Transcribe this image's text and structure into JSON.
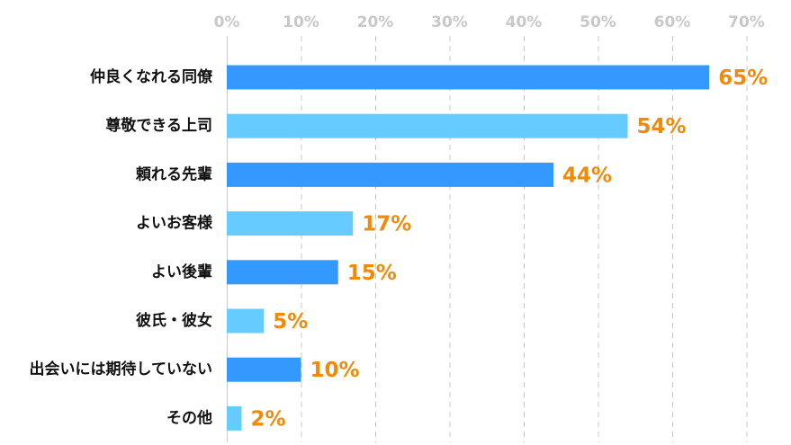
{
  "chart_data": {
    "type": "bar",
    "orientation": "horizontal",
    "categories": [
      "仲良くなれる同僚",
      "尊敬できる上司",
      "頼れる先輩",
      "よいお客様",
      "よい後輩",
      "彼氏・彼女",
      "出会いには期待していない",
      "その他"
    ],
    "values": [
      65,
      54,
      44,
      17,
      15,
      5,
      10,
      2
    ],
    "value_labels": [
      "65%",
      "54%",
      "44%",
      "17%",
      "15%",
      "5%",
      "10%",
      "2%"
    ],
    "x_ticks": [
      0,
      10,
      20,
      30,
      40,
      50,
      60,
      70
    ],
    "x_tick_labels": [
      "0%",
      "10%",
      "20%",
      "30%",
      "40%",
      "50%",
      "60%",
      "70%"
    ],
    "xlim": [
      0,
      72
    ],
    "axis_position": "top",
    "grid": true,
    "legend": "none",
    "colors": {
      "bar_dark": "#3399ff",
      "bar_light": "#66ccff",
      "value_label": "#f08a0c",
      "tick_label": "#c8c8c8",
      "grid": "#c8c8c8",
      "category_label": "#111111"
    },
    "bar_color_pattern": [
      "bar_dark",
      "bar_light",
      "bar_dark",
      "bar_light",
      "bar_dark",
      "bar_light",
      "bar_dark",
      "bar_light"
    ]
  }
}
